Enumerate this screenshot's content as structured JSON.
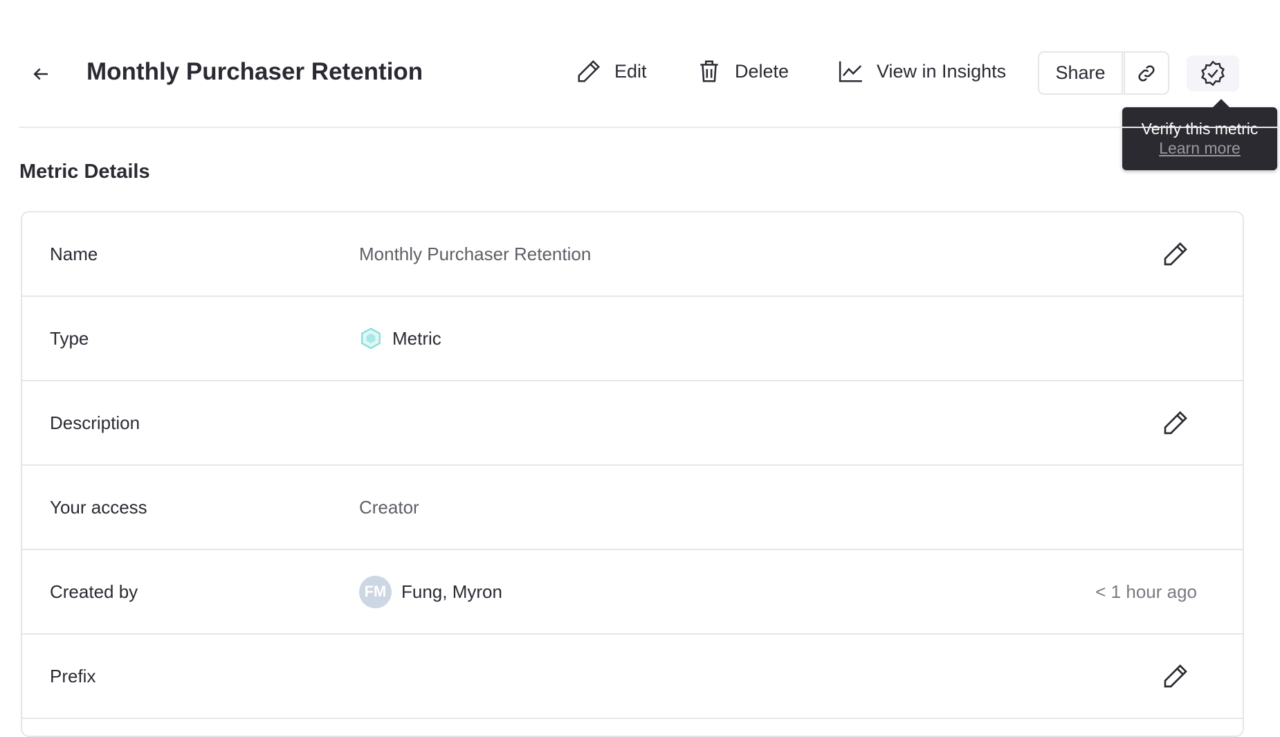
{
  "header": {
    "title": "Monthly Purchaser Retention",
    "edit": "Edit",
    "delete": "Delete",
    "insights": "View in Insights",
    "share": "Share"
  },
  "tooltip": {
    "text": "Verify this metric",
    "link": "Learn more"
  },
  "section_title": "Metric Details",
  "rows": [
    {
      "label": "Name",
      "value": "Monthly Purchaser Retention"
    },
    {
      "label": "Type",
      "value": "Metric"
    },
    {
      "label": "Description",
      "value": ""
    },
    {
      "label": "Your access",
      "value": "Creator"
    },
    {
      "label": "Created by",
      "value": "Fung, Myron",
      "initials": "FM",
      "time": "< 1 hour ago"
    },
    {
      "label": "Prefix",
      "value": ""
    }
  ],
  "colors": {
    "metric_icon": "#7fe0dc",
    "avatar": "#cdd6e3",
    "tooltip_bg": "#2a2a30"
  }
}
